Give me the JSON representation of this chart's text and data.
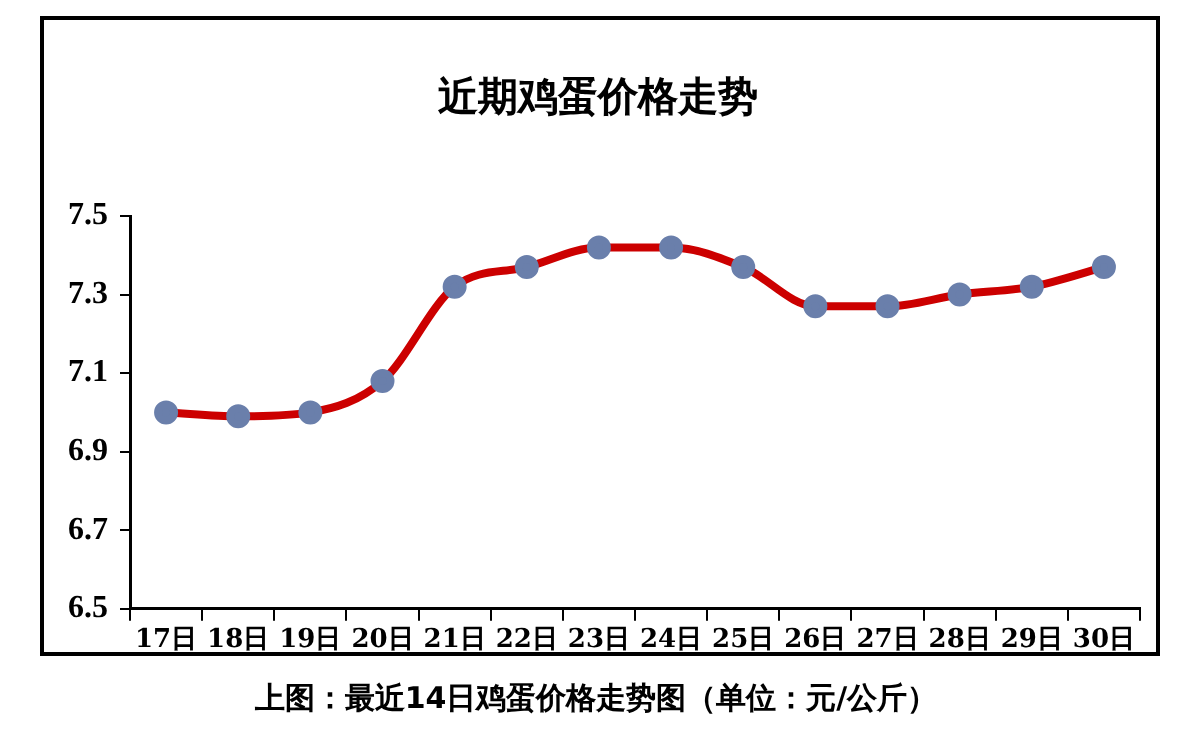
{
  "chart_data": {
    "type": "line",
    "title": "近期鸡蛋价格走势",
    "categories": [
      "17日",
      "18日",
      "19日",
      "20日",
      "21日",
      "22日",
      "23日",
      "24日",
      "25日",
      "26日",
      "27日",
      "28日",
      "29日",
      "30日"
    ],
    "series": [
      {
        "color": "#cc0000",
        "values": [
          7.0,
          6.99,
          7.0,
          7.08,
          7.32,
          7.37,
          7.42,
          7.42,
          7.37,
          7.27,
          7.27,
          7.3,
          7.32,
          7.37
        ]
      }
    ],
    "ylim": [
      6.5,
      7.5
    ],
    "yticks": [
      6.5,
      6.7,
      6.9,
      7.1,
      7.3,
      7.5
    ],
    "grid": false,
    "legend": false,
    "marker": "circle",
    "line_style": "solid",
    "annotations": [
      "上图：最近14日鸡蛋价格走势图（单位：元/公斤）"
    ]
  }
}
